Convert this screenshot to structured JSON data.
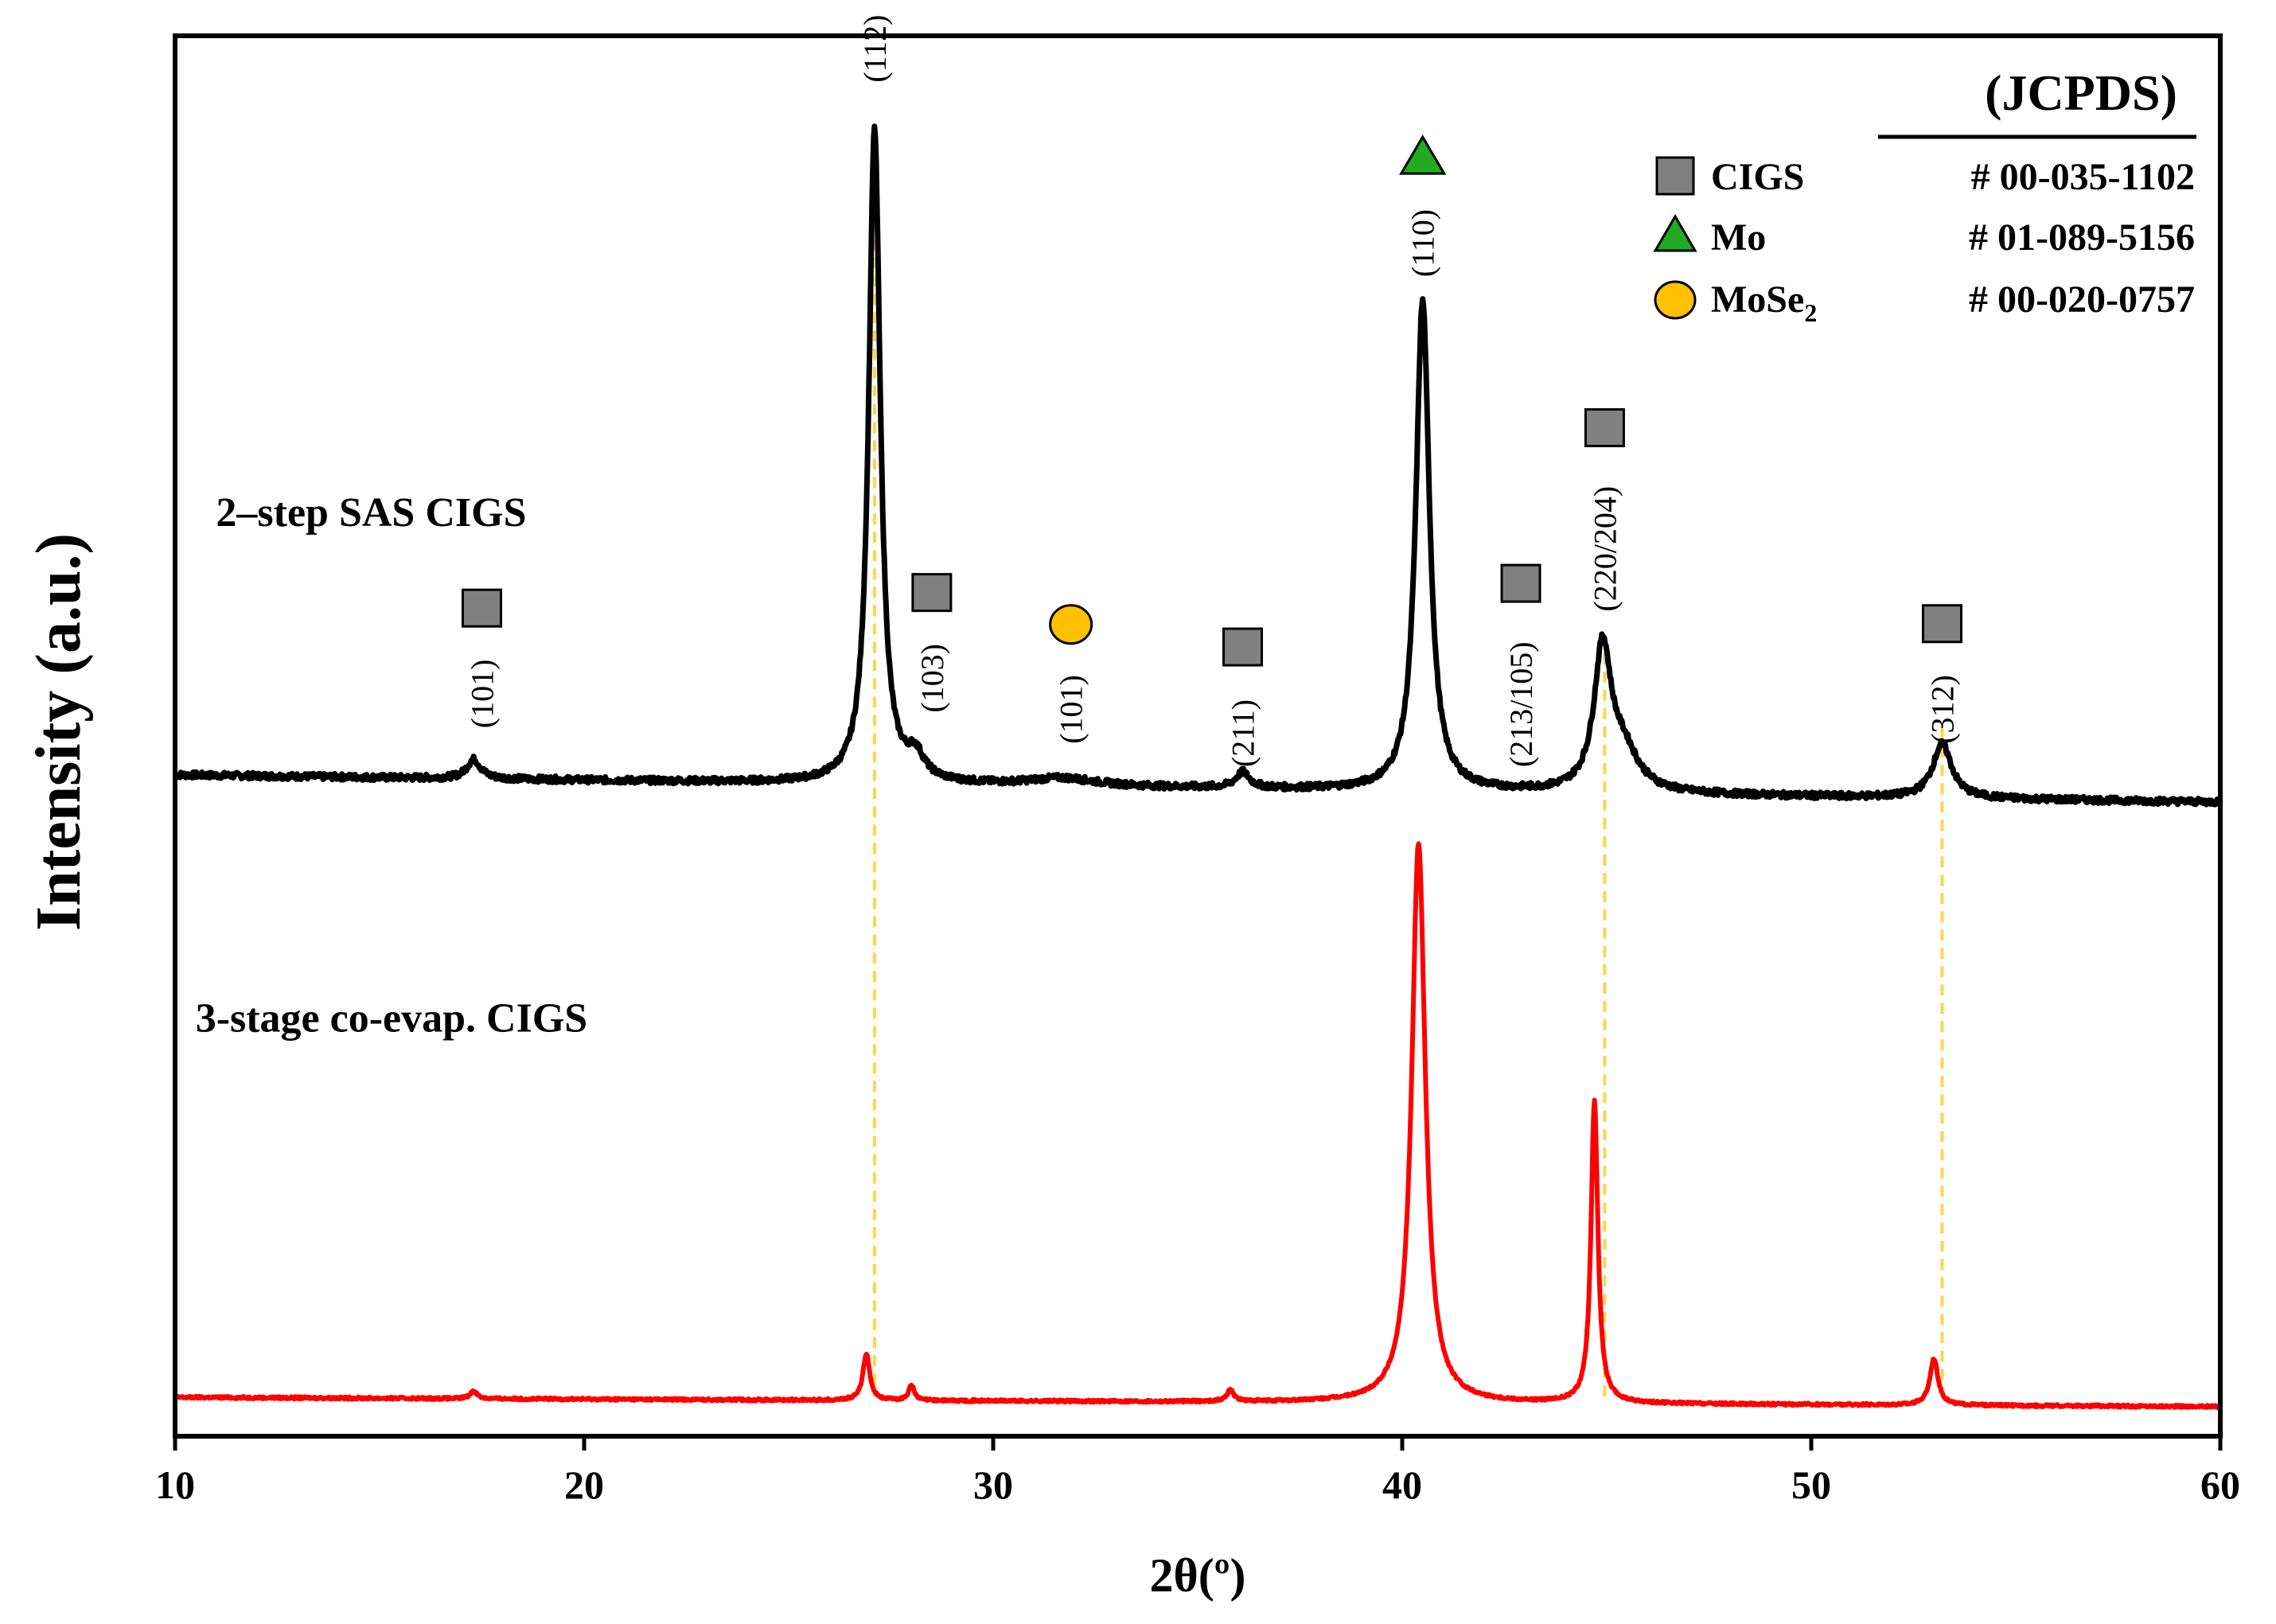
{
  "chart_data": {
    "type": "line",
    "title": "",
    "xlabel": "2θ(º)",
    "ylabel": "Intensity (a.u.)",
    "xlim": [
      10,
      60
    ],
    "ylim": [
      0,
      1.8
    ],
    "xticks": [
      10,
      20,
      30,
      40,
      50,
      60
    ],
    "grid": false,
    "series": [
      {
        "name": "2–step SAS CIGS",
        "color": "#000000",
        "baseline": 0.85,
        "drift": -0.035,
        "peaks": [
          {
            "x": 17.3,
            "h": 0.025,
            "w": 0.2
          },
          {
            "x": 27.1,
            "h": 0.84,
            "w": 0.17
          },
          {
            "x": 28.1,
            "h": 0.03,
            "w": 0.25
          },
          {
            "x": 31.7,
            "h": 0.01,
            "w": 1.0
          },
          {
            "x": 36.1,
            "h": 0.02,
            "w": 0.2
          },
          {
            "x": 40.5,
            "h": 0.63,
            "w": 0.2
          },
          {
            "x": 44.9,
            "h": 0.18,
            "w": 0.25
          },
          {
            "x": 45.4,
            "h": 0.05,
            "w": 0.45
          },
          {
            "x": 53.2,
            "h": 0.07,
            "w": 0.28
          }
        ]
      },
      {
        "name": "3-stage co-evap. CIGS",
        "color": "#ff0000",
        "baseline": 0.05,
        "drift": -0.012,
        "peaks": [
          {
            "x": 17.3,
            "h": 0.01,
            "w": 0.1
          },
          {
            "x": 26.9,
            "h": 0.06,
            "w": 0.1
          },
          {
            "x": 28.0,
            "h": 0.02,
            "w": 0.08
          },
          {
            "x": 35.8,
            "h": 0.015,
            "w": 0.1
          },
          {
            "x": 40.4,
            "h": 0.72,
            "w": 0.2
          },
          {
            "x": 44.7,
            "h": 0.39,
            "w": 0.1
          },
          {
            "x": 53.0,
            "h": 0.06,
            "w": 0.12
          }
        ]
      }
    ],
    "reference_lines": [
      27.1,
      44.95,
      53.2
    ],
    "reference_line_color": "#ffd54f",
    "peak_annotations": [
      {
        "x": 17.5,
        "label": "(101)",
        "phase": "CIGS",
        "y": 0.91
      },
      {
        "x": 27.1,
        "label": "(112)",
        "phase": "CIGS",
        "y": 1.74
      },
      {
        "x": 28.5,
        "label": "(103)",
        "phase": "CIGS",
        "y": 0.93
      },
      {
        "x": 31.9,
        "label": "(101)",
        "phase": "MoSe2",
        "y": 0.89
      },
      {
        "x": 36.1,
        "label": "(211)",
        "phase": "CIGS",
        "y": 0.86
      },
      {
        "x": 40.5,
        "label": "(110)",
        "phase": "Mo",
        "y": 1.49
      },
      {
        "x": 42.9,
        "label": "(213/105)",
        "phase": "CIGS",
        "y": 0.86
      },
      {
        "x": 44.95,
        "label": "(220/204)",
        "phase": "CIGS",
        "y": 1.06
      },
      {
        "x": 53.2,
        "label": "(312)",
        "phase": "CIGS",
        "y": 0.89
      }
    ],
    "series_annotations": [
      {
        "text": "2–step SAS CIGS",
        "x": 11.0,
        "y": 1.17
      },
      {
        "text": "3-stage co-evap. CIGS",
        "x": 10.5,
        "y": 0.52
      }
    ],
    "legend": {
      "placement": "top-right",
      "header": "(JCPDS)",
      "entries": [
        {
          "marker": "square",
          "color": "#808080",
          "name": "CIGS",
          "card": "# 00-035-1102"
        },
        {
          "marker": "triangle",
          "color": "#22aa22",
          "name": "Mo",
          "card": "# 01-089-5156"
        },
        {
          "marker": "circle",
          "color": "#ffc000",
          "name": "MoSe",
          "sub": "2",
          "card": "# 00-020-0757"
        }
      ]
    }
  }
}
